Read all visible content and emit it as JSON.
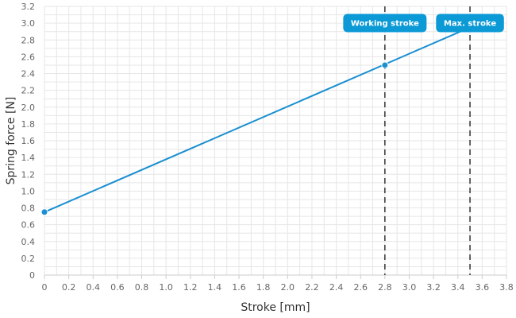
{
  "chart_data": {
    "type": "line",
    "xlabel": "Stroke [mm]",
    "ylabel": "Spring force [N]",
    "xlim": [
      0,
      3.8
    ],
    "ylim": [
      0,
      3.2
    ],
    "x_ticks": [
      "0",
      "0.2",
      "0.4",
      "0.6",
      "0.8",
      "1.0",
      "1.2",
      "1.4",
      "1.6",
      "1.8",
      "2.0",
      "2.2",
      "2.4",
      "2.6",
      "2.8",
      "3.0",
      "3.2",
      "3.4",
      "3.6",
      "3.8"
    ],
    "y_ticks": [
      "0",
      "0.2",
      "0.4",
      "0.6",
      "0.8",
      "1.0",
      "1.2",
      "1.4",
      "1.6",
      "1.8",
      "2.0",
      "2.2",
      "2.4",
      "2.6",
      "2.8",
      "3.0",
      "3.2"
    ],
    "grid": true,
    "series": [
      {
        "x": [
          0,
          3.5
        ],
        "y": [
          0.75,
          2.95
        ],
        "color": "#1a8fd1"
      }
    ],
    "markers": [
      {
        "x": 0,
        "y": 0.75
      },
      {
        "x": 2.8,
        "y": 2.5
      }
    ],
    "vertical_lines": [
      {
        "x": 2.8,
        "label": "Working stroke"
      },
      {
        "x": 3.5,
        "label": "Max. stroke"
      }
    ],
    "colors": {
      "line": "#1a8fd1",
      "annotation_bg": "#0b9ad6",
      "grid": "#e6e6e6",
      "axis": "#cccccc",
      "marker_line": "#333333"
    }
  }
}
